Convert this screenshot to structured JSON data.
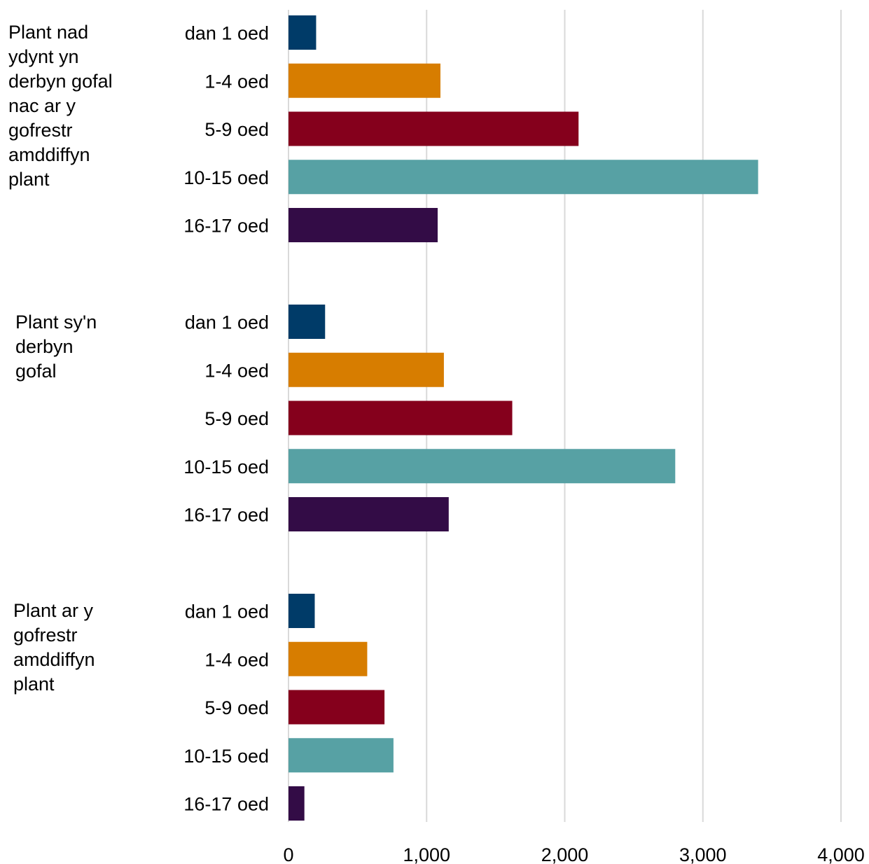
{
  "chart_data": {
    "type": "bar",
    "orientation": "horizontal",
    "title": "",
    "xlabel": "",
    "ylabel": "",
    "xlim": [
      0,
      4000
    ],
    "x_ticks": [
      0,
      1000,
      2000,
      3000,
      4000
    ],
    "x_tick_labels": [
      "0",
      "1,000",
      "2,000",
      "3,000",
      "4,000"
    ],
    "grid": "vertical",
    "legend": "none",
    "category_colors": {
      "dan 1 oed": "#003B68",
      "1-4 oed": "#D77D00",
      "5-9 oed": "#85001C",
      "10-15 oed": "#57A1A4",
      "16-17 oed": "#330C46"
    },
    "groups": [
      {
        "label": "Plant nad ydynt yn derbyn gofal nac ar y gofrestr amddiffyn plant",
        "categories": [
          "dan 1 oed",
          "1-4 oed",
          "5-9 oed",
          "10-15 oed",
          "16-17 oed"
        ],
        "values": [
          200,
          1100,
          2100,
          3400,
          1080
        ]
      },
      {
        "label": "Plant sy'n derbyn gofal",
        "categories": [
          "dan 1 oed",
          "1-4 oed",
          "5-9 oed",
          "10-15 oed",
          "16-17 oed"
        ],
        "values": [
          265,
          1125,
          1620,
          2800,
          1160
        ]
      },
      {
        "label": "Plant ar y gofrestr amddiffyn plant",
        "categories": [
          "dan 1 oed",
          "1-4 oed",
          "5-9 oed",
          "10-15 oed",
          "16-17 oed"
        ],
        "values": [
          190,
          570,
          695,
          760,
          115
        ]
      }
    ]
  }
}
